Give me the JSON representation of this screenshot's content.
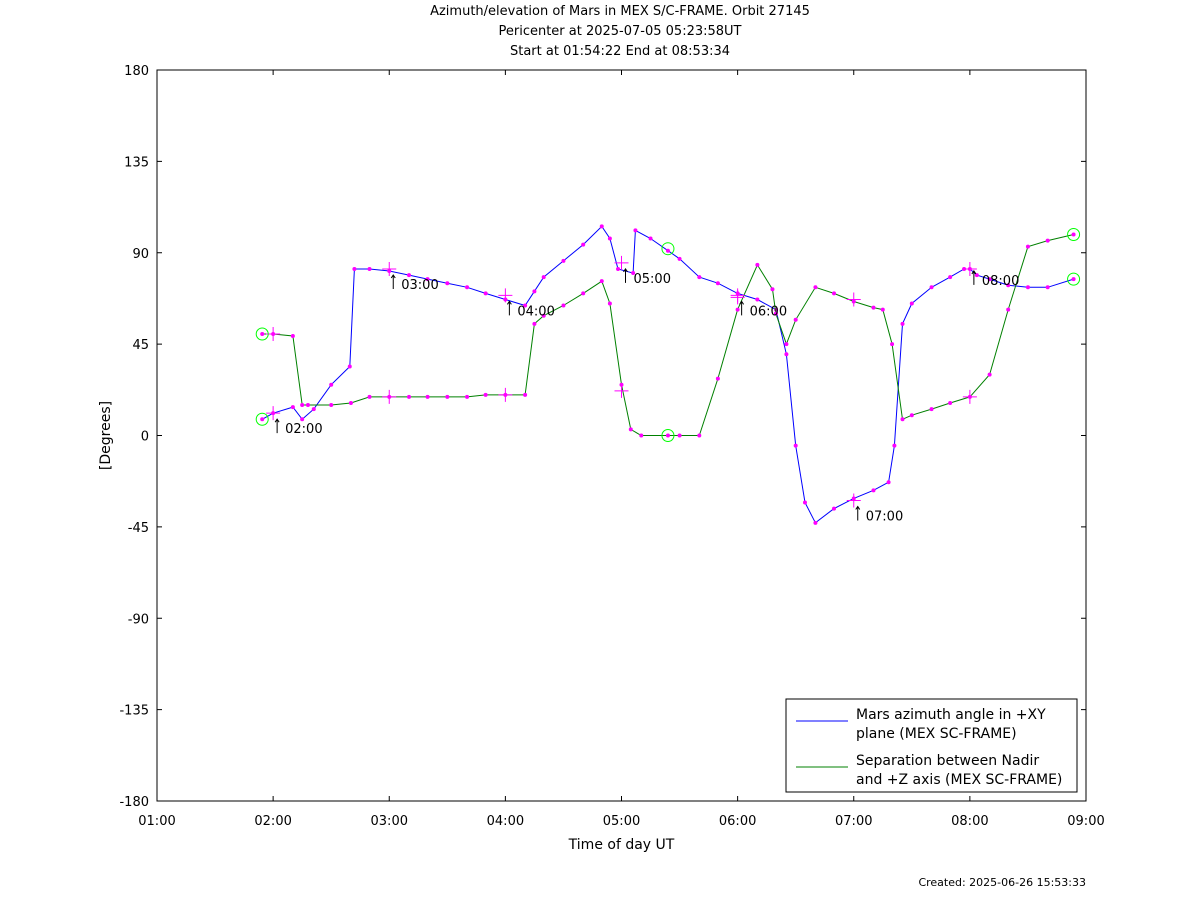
{
  "colors": {
    "background": "#ffffff",
    "azimuth_line": "#0000ff",
    "separation_line": "#008000",
    "markers": "#ff00ff",
    "endpoint_circles": "#00ff00",
    "axes": "#000000"
  },
  "header": {
    "line1": "Azimuth/elevation of Mars in MEX S/C-FRAME.  Orbit 27145",
    "line2": "Pericenter at 2025-07-05 05:23:58UT",
    "line3": "Start at 01:54:22 End at 08:53:34"
  },
  "footer": {
    "created": "Created: 2025-06-26 15:53:33"
  },
  "chart_data": {
    "type": "line",
    "title": "Azimuth/elevation of Mars in MEX S/C-FRAME.  Orbit 27145",
    "xlabel": "Time of day UT",
    "ylabel": "[Degrees]",
    "xlim": [
      1.0,
      9.0
    ],
    "ylim": [
      -180,
      180
    ],
    "x_ticks": [
      1,
      2,
      3,
      4,
      5,
      6,
      7,
      8,
      9
    ],
    "x_tick_labels": [
      "01:00",
      "02:00",
      "03:00",
      "04:00",
      "05:00",
      "06:00",
      "07:00",
      "08:00",
      "09:00"
    ],
    "y_ticks": [
      180,
      135,
      90,
      45,
      0,
      -45,
      -90,
      -135,
      -180
    ],
    "y_tick_labels": [
      "180",
      "135",
      "90",
      "45",
      "0",
      "-45",
      "-90",
      "-135",
      "-180"
    ],
    "grid": false,
    "legend_position": "bottom-right",
    "series": [
      {
        "name": "Mars azimuth angle in +XY plane (MEX SC-FRAME)",
        "legend_lines": [
          "Mars azimuth angle in +XY",
          "plane (MEX SC-FRAME)"
        ],
        "color": "#0000ff",
        "x": [
          1.906,
          2.0,
          2.17,
          2.25,
          2.35,
          2.5,
          2.66,
          2.7,
          2.83,
          3.0,
          3.17,
          3.33,
          3.5,
          3.67,
          3.83,
          4.0,
          4.17,
          4.25,
          4.33,
          4.5,
          4.67,
          4.83,
          4.9,
          4.97,
          5.1,
          5.12,
          5.25,
          5.4,
          5.5,
          5.67,
          5.83,
          6.0,
          6.17,
          6.33,
          6.42,
          6.5,
          6.58,
          6.67,
          6.83,
          7.0,
          7.17,
          7.3,
          7.35,
          7.42,
          7.5,
          7.67,
          7.83,
          7.95,
          8.0,
          8.06,
          8.17,
          8.33,
          8.5,
          8.67,
          8.893
        ],
        "y": [
          8,
          11,
          14,
          8,
          13,
          25,
          34,
          82,
          82,
          81,
          79,
          77,
          75,
          73,
          70,
          67,
          64,
          71,
          78,
          86,
          94,
          103,
          97,
          82,
          80,
          101,
          97,
          91,
          87,
          78,
          75,
          70,
          67,
          62,
          40,
          -5,
          -33,
          -43,
          -36,
          -31,
          -27,
          -23,
          -5,
          55,
          65,
          73,
          78,
          82,
          82,
          79,
          77,
          74,
          73,
          73,
          77
        ]
      },
      {
        "name": "Separation between Nadir and +Z axis (MEX SC-FRAME)",
        "legend_lines": [
          "Separation between Nadir",
          "and +Z axis (MEX SC-FRAME)"
        ],
        "color": "#008000",
        "x": [
          1.906,
          2.0,
          2.17,
          2.25,
          2.3,
          2.5,
          2.67,
          2.83,
          3.0,
          3.17,
          3.33,
          3.5,
          3.67,
          3.83,
          4.0,
          4.17,
          4.25,
          4.33,
          4.5,
          4.67,
          4.83,
          4.9,
          5.0,
          5.08,
          5.17,
          5.4,
          5.5,
          5.67,
          5.83,
          6.0,
          6.17,
          6.3,
          6.33,
          6.42,
          6.5,
          6.67,
          6.83,
          7.0,
          7.17,
          7.25,
          7.33,
          7.42,
          7.5,
          7.67,
          7.83,
          8.0,
          8.17,
          8.33,
          8.5,
          8.67,
          8.893
        ],
        "y": [
          50,
          50,
          49,
          15,
          15,
          15,
          16,
          19,
          19,
          19,
          19,
          19,
          19,
          20,
          20,
          20,
          55,
          59,
          64,
          70,
          76,
          65,
          25,
          3,
          0,
          0,
          0,
          0,
          28,
          62,
          84,
          72,
          60,
          45,
          57,
          73,
          70,
          66,
          63,
          62,
          45,
          8,
          10,
          13,
          16,
          19,
          30,
          62,
          93,
          96,
          99
        ]
      }
    ],
    "annotations": [
      {
        "label": "02:00",
        "series": 0,
        "x": 2.0,
        "y": 11,
        "placement": "below"
      },
      {
        "label": "03:00",
        "series": 0,
        "x": 3.0,
        "y": 82,
        "placement": "below"
      },
      {
        "label": "04:00",
        "series": 0,
        "x": 4.0,
        "y": 69,
        "placement": "below"
      },
      {
        "label": "05:00",
        "series": 0,
        "x": 5.0,
        "y": 85,
        "placement": "below"
      },
      {
        "label": "06:00",
        "series": 0,
        "x": 6.0,
        "y": 69,
        "placement": "below"
      },
      {
        "label": "07:00",
        "series": 0,
        "x": 7.0,
        "y": -32,
        "placement": "below"
      },
      {
        "label": "08:00",
        "series": 0,
        "x": 8.0,
        "y": 84,
        "placement": "below"
      }
    ],
    "hour_crosses": [
      {
        "x": 2.0,
        "y": 11
      },
      {
        "x": 3.0,
        "y": 82
      },
      {
        "x": 4.0,
        "y": 69
      },
      {
        "x": 5.0,
        "y": 85
      },
      {
        "x": 6.0,
        "y": 69
      },
      {
        "x": 7.0,
        "y": -32
      },
      {
        "x": 8.0,
        "y": 82
      },
      {
        "x": 2.0,
        "y": 50
      },
      {
        "x": 3.0,
        "y": 19
      },
      {
        "x": 4.0,
        "y": 20
      },
      {
        "x": 5.0,
        "y": 22
      },
      {
        "x": 6.0,
        "y": 68
      },
      {
        "x": 7.0,
        "y": 67
      },
      {
        "x": 8.0,
        "y": 19
      }
    ],
    "endpoint_circles": [
      {
        "x": 1.906,
        "y": 8
      },
      {
        "x": 1.906,
        "y": 50
      },
      {
        "x": 8.893,
        "y": 77
      },
      {
        "x": 8.893,
        "y": 99
      },
      {
        "x": 5.4,
        "y": 92
      },
      {
        "x": 5.4,
        "y": 0
      }
    ]
  }
}
